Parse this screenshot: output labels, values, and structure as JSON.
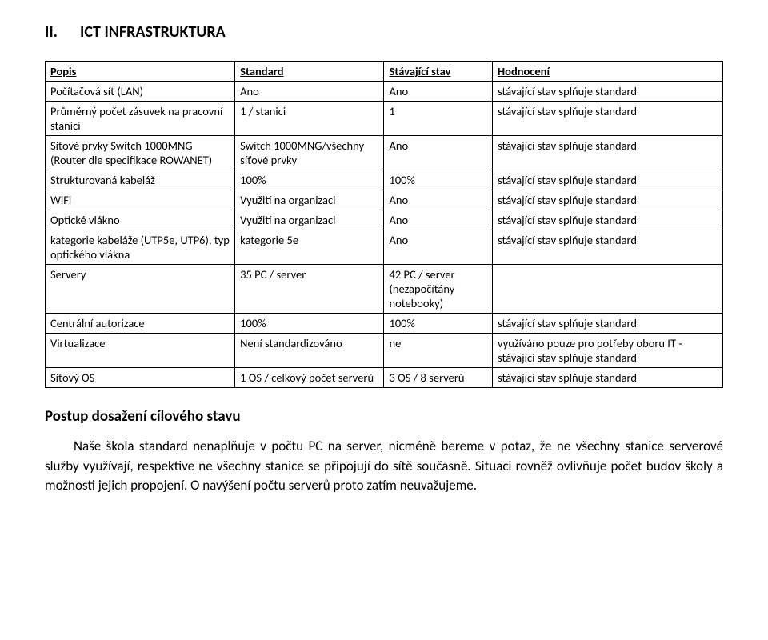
{
  "section": {
    "number": "II.",
    "title": "ICT INFRASTRUKTURA"
  },
  "table": {
    "columns": [
      "Popis",
      "Standard",
      "Stávající stav",
      "Hodnocení"
    ],
    "rows": [
      [
        "Počítačová síť (LAN)",
        "Ano",
        "Ano",
        "stávající stav splňuje standard"
      ],
      [
        "Průměrný počet zásuvek na pracovní stanici",
        "1 / stanici",
        "1",
        "stávající stav splňuje standard"
      ],
      [
        "Síťové prvky Switch 1000MNG (Router dle specifikace ROWANET)",
        "Switch 1000MNG/všechny síťové prvky",
        "Ano",
        "stávající stav splňuje standard"
      ],
      [
        "Strukturovaná kabeláž",
        "100%",
        "100%",
        "stávající stav splňuje standard"
      ],
      [
        "WiFi",
        "Využití na organizaci",
        "Ano",
        "stávající stav splňuje standard"
      ],
      [
        "Optické vlákno",
        "Využití na organizaci",
        "Ano",
        "stávající stav splňuje standard"
      ],
      [
        "kategorie kabeláže (UTP5e, UTP6), typ optického vlákna",
        "kategorie 5e",
        "Ano",
        "stávající stav splňuje standard"
      ],
      [
        "Servery",
        "35 PC / server",
        "42 PC / server (nezapočítány notebooky)",
        ""
      ],
      [
        "Centrální autorizace",
        "100%",
        "100%",
        "stávající stav splňuje standard"
      ],
      [
        "Virtualizace",
        "Není standardizováno",
        "ne",
        "využíváno pouze pro potřeby oboru IT - stávající stav splňuje standard"
      ],
      [
        "Síťový OS",
        "1 OS / celkový počet serverů",
        "3 OS / 8 serverů",
        "stávající stav splňuje standard"
      ]
    ]
  },
  "postup_heading": "Postup dosažení cílového stavu",
  "body_paragraph": "Naše škola standard nenaplňuje v počtu PC na server, nicméně bereme v potaz, že ne všechny stanice serverové služby využívají, respektive ne všechny stanice se připojují do sítě současně. Situaci rovněž ovlivňuje počet budov školy a možnosti jejich propojení. O navýšení počtu serverů proto zatím neuvažujeme."
}
